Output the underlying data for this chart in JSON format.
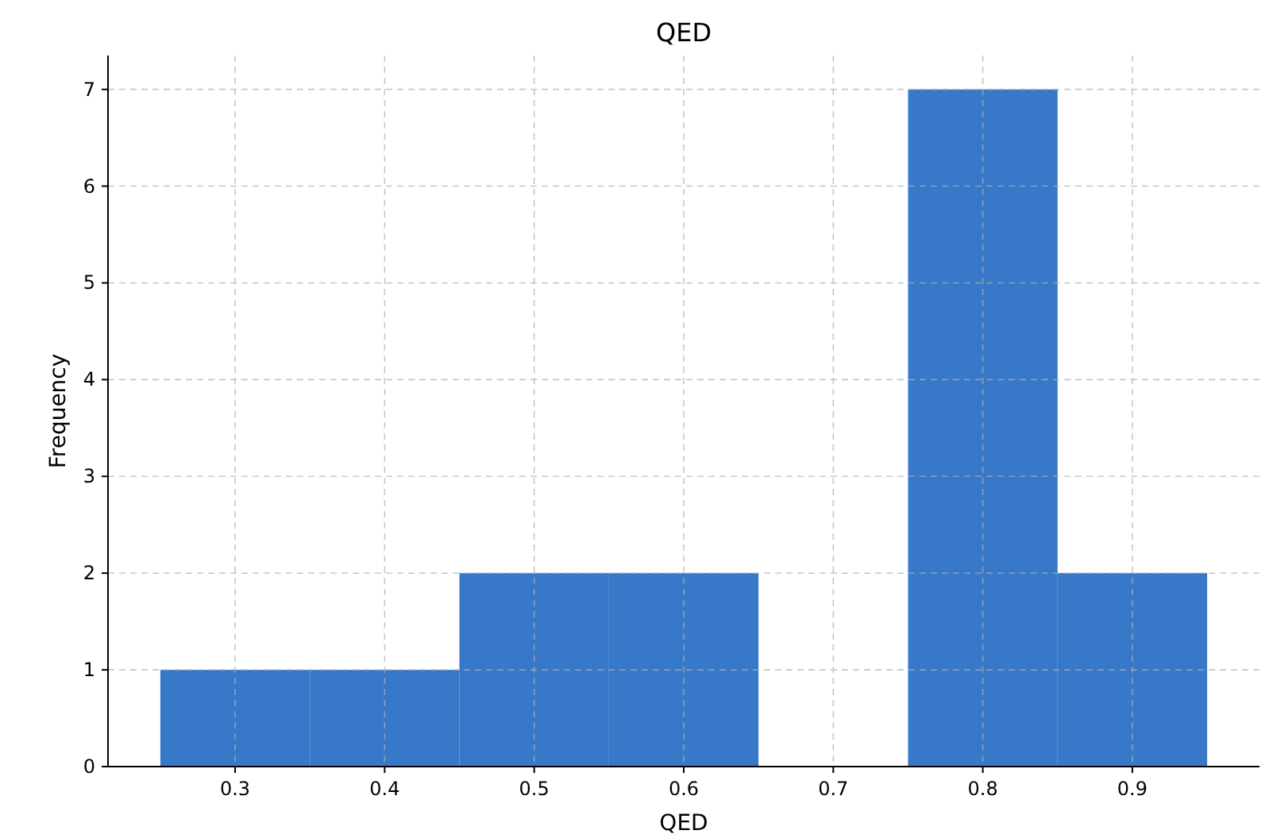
{
  "chart_data": {
    "type": "histogram",
    "title": "QED",
    "xlabel": "QED",
    "ylabel": "Frequency",
    "bins": [
      0.25,
      0.35,
      0.45,
      0.55,
      0.65,
      0.75,
      0.85,
      0.95
    ],
    "values": [
      1,
      1,
      2,
      2,
      0,
      7,
      2
    ],
    "color": "#3778c8",
    "xlim": [
      0.215,
      0.985
    ],
    "xticks": [
      0.3,
      0.4,
      0.5,
      0.6,
      0.7,
      0.8,
      0.9
    ],
    "ylim": [
      0,
      7.35
    ],
    "yticks": [
      0,
      1,
      2,
      3,
      4,
      5,
      6,
      7
    ],
    "grid": true
  }
}
